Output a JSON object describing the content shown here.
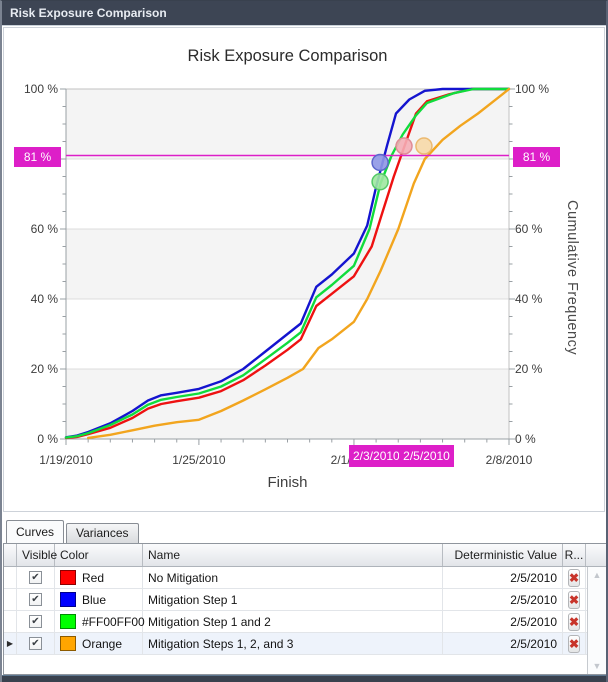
{
  "window": {
    "title": "Risk Exposure Comparison"
  },
  "tabs": [
    {
      "label": "Curves",
      "active": true
    },
    {
      "label": "Variances",
      "active": false
    }
  ],
  "chart": {
    "title": "Risk Exposure Comparison",
    "x_axis": {
      "label": "Finish",
      "crosshair_badge": "2/3/2010",
      "deterministic_badge": "2/5/2010"
    },
    "y_axis": {
      "right_label": "Cumulative Frequency",
      "threshold_badge": "81 %"
    }
  },
  "chart_data": {
    "type": "line",
    "title": "Risk Exposure Comparison",
    "xlabel": "Finish",
    "ylabel": "Cumulative Frequency",
    "x_unit": "days after 1/19/2010",
    "ylim": [
      0,
      100
    ],
    "grid": "horizontal, 20% bands shaded",
    "threshold_pct": 81,
    "crosshair_date": "2/3/2010",
    "deterministic_date": "2/5/2010",
    "x_ticks": [
      {
        "label": "1/19/2010",
        "day": 0
      },
      {
        "label": "1/25/2010",
        "day": 6
      },
      {
        "label": "2/1/2010",
        "day": 13
      },
      {
        "label": "2/8/2010",
        "day": 20
      }
    ],
    "y_ticks": [
      {
        "label": "100 %",
        "pct": 100
      },
      {
        "label": "60 %",
        "pct": 60
      },
      {
        "label": "40 %",
        "pct": 40
      },
      {
        "label": "20 %",
        "pct": 20
      },
      {
        "label": "0 %",
        "pct": 0
      }
    ],
    "series": [
      {
        "name": "No Mitigation",
        "color": "#ee1111",
        "x": [
          0,
          0.5,
          1,
          2,
          3,
          3.7,
          4.3,
          5,
          6,
          7,
          8,
          9,
          10,
          10.6,
          11.3,
          12,
          13,
          13.8,
          14.3,
          14.8,
          15.3,
          15.8,
          16.3,
          17.3,
          18.3,
          20
        ],
        "y": [
          0.3,
          0.6,
          1.4,
          3.2,
          6,
          8.7,
          10,
          10.8,
          11.8,
          13.7,
          16.8,
          21,
          25.5,
          28.5,
          38,
          41.5,
          46.5,
          55,
          65,
          75,
          84,
          93,
          96.5,
          98.5,
          100,
          100
        ]
      },
      {
        "name": "Mitigation Step 1",
        "color": "#1414cf",
        "x": [
          0,
          0.5,
          1,
          2,
          3,
          3.7,
          4.3,
          5,
          6,
          7,
          8,
          9,
          10,
          10.6,
          11.3,
          12,
          13,
          13.6,
          14,
          14.5,
          14.9,
          15.5,
          16.2,
          17,
          20
        ],
        "y": [
          0.5,
          1,
          2,
          4.5,
          8,
          11,
          12.5,
          13.2,
          14.3,
          16.5,
          20,
          25,
          30,
          33,
          43.5,
          47,
          53,
          61,
          72,
          84,
          93,
          97,
          99.5,
          100,
          100
        ]
      },
      {
        "name": "Mitigation Step 1 and 2",
        "color": "#10dc3c",
        "x": [
          0,
          0.5,
          1,
          2,
          3,
          3.7,
          4.3,
          5,
          6,
          7,
          8,
          9,
          10,
          10.6,
          11.3,
          12,
          13,
          13.7,
          14.2,
          14.7,
          15.2,
          15.8,
          16.3,
          17.5,
          18.4,
          20
        ],
        "y": [
          0.4,
          0.8,
          1.7,
          4,
          7,
          9.8,
          11.2,
          12,
          13,
          15,
          18.2,
          22.8,
          27.5,
          30.5,
          40.5,
          44,
          49.5,
          60,
          73,
          81,
          87,
          92.5,
          96,
          98.8,
          100,
          100
        ]
      },
      {
        "name": "Mitigation Steps 1, 2, and 3",
        "color": "#f2a51e",
        "x": [
          1,
          2,
          3,
          4,
          5,
          6,
          7,
          8,
          9,
          10,
          10.7,
          11.4,
          12,
          13,
          13.6,
          14.2,
          15,
          15.7,
          16.2,
          17,
          17.8,
          18.6,
          19.3,
          19.7,
          20
        ],
        "y": [
          0.3,
          1.2,
          2.5,
          3.8,
          4.8,
          5.5,
          8,
          11,
          14.2,
          17.5,
          20,
          26,
          28.5,
          33.5,
          40,
          48,
          60,
          73,
          80,
          85.5,
          89.5,
          93,
          96.5,
          98.5,
          100
        ]
      }
    ],
    "markers": [
      {
        "series": "Mitigation Step 1",
        "day": 14.18,
        "pct": 79,
        "fill": "#8e97e6",
        "stroke": "#5b66cc"
      },
      {
        "series": "Mitigation Step 1 and 2",
        "day": 14.18,
        "pct": 73.5,
        "fill": "#9fe8a0",
        "stroke": "#55c966"
      },
      {
        "series": "No Mitigation",
        "day": 15.26,
        "pct": 83.7,
        "fill": "#f4aeb6",
        "stroke": "#e08b96"
      },
      {
        "series": "Mitigation Steps 1, 2, and 3",
        "day": 16.16,
        "pct": 83.7,
        "fill": "#f7d9a9",
        "stroke": "#ecba70"
      }
    ]
  },
  "table": {
    "columns": {
      "visible": "Visible",
      "color": "Color",
      "name": "Name",
      "deterministic": "Deterministic Value",
      "remove": "R..."
    },
    "rows": [
      {
        "visible": true,
        "color_name": "Red",
        "color_hex": "#ff0000",
        "name": "No Mitigation",
        "deterministic_value": "2/5/2010",
        "selected": false
      },
      {
        "visible": true,
        "color_name": "Blue",
        "color_hex": "#0000ff",
        "name": "Mitigation Step 1",
        "deterministic_value": "2/5/2010",
        "selected": false
      },
      {
        "visible": true,
        "color_name": "#FF00FF00",
        "color_hex": "#00ff00",
        "name": "Mitigation Step 1 and 2",
        "deterministic_value": "2/5/2010",
        "selected": false
      },
      {
        "visible": true,
        "color_name": "Orange",
        "color_hex": "#ffa500",
        "name": "Mitigation Steps 1, 2, and 3",
        "deterministic_value": "2/5/2010",
        "selected": true
      }
    ]
  },
  "colors": {
    "titlebar": "#3d4554",
    "accent_magenta": "#dd1fc8",
    "band_gray": "#f4f4f4",
    "gridline": "#dcdcdc"
  }
}
